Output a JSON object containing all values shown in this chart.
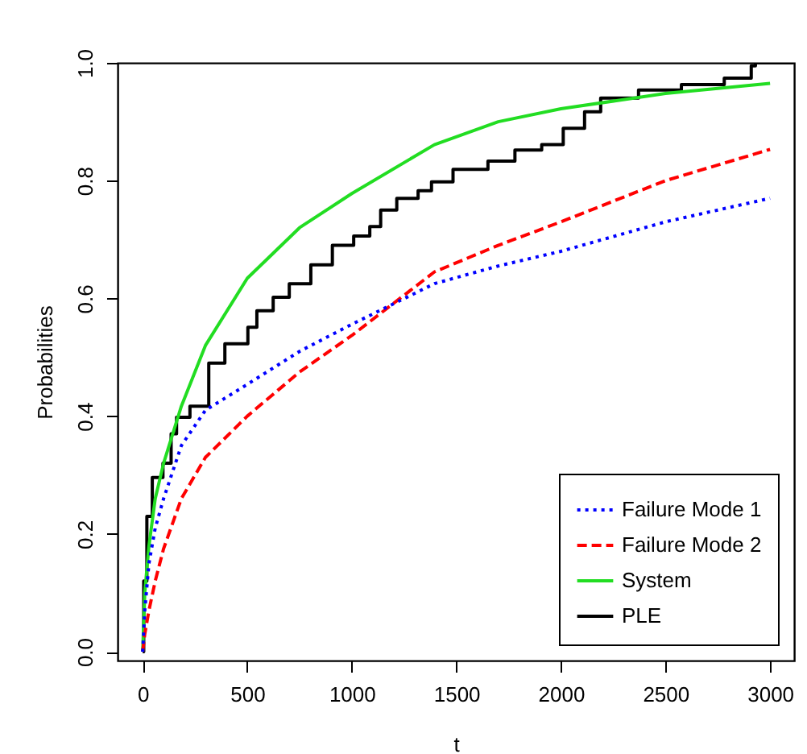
{
  "chart_data": {
    "type": "line",
    "xlabel": "t",
    "ylabel": "Probabilities",
    "xlim": [
      -120,
      3115
    ],
    "ylim": [
      -0.015,
      1.0
    ],
    "xticks": [
      0,
      500,
      1000,
      1500,
      2000,
      2500,
      3000
    ],
    "yticks": [
      {
        "value": 0,
        "label": "0.0"
      },
      {
        "value": 0.2,
        "label": "0.2"
      },
      {
        "value": 0.4,
        "label": "0.4"
      },
      {
        "value": 0.6,
        "label": "0.6"
      },
      {
        "value": 0.8,
        "label": "0.8"
      },
      {
        "value": 1,
        "label": "1.0"
      }
    ],
    "grid": false,
    "legend": "bottom right",
    "series": [
      {
        "name": "Failure Mode 1",
        "color": "#0000ff",
        "line_style": "dotted",
        "x": [
          0,
          10,
          30,
          60,
          100,
          185,
          300,
          500,
          750,
          1000,
          1395,
          1700,
          2000,
          2500,
          3000
        ],
        "values": [
          0,
          0.07,
          0.15,
          0.21,
          0.26,
          0.35,
          0.41,
          0.454,
          0.51,
          0.556,
          0.625,
          0.655,
          0.68,
          0.73,
          0.77
        ]
      },
      {
        "name": "Failure Mode 2",
        "color": "#ff0000",
        "line_style": "dashed",
        "x": [
          0,
          10,
          30,
          60,
          100,
          185,
          300,
          500,
          750,
          1000,
          1395,
          1700,
          2000,
          2500,
          3000
        ],
        "values": [
          0,
          0.03,
          0.07,
          0.12,
          0.175,
          0.26,
          0.33,
          0.4,
          0.475,
          0.537,
          0.645,
          0.69,
          0.73,
          0.8,
          0.853
        ]
      },
      {
        "name": "System",
        "color": "#22dd22",
        "line_style": "solid",
        "x": [
          0,
          10,
          30,
          60,
          100,
          185,
          300,
          500,
          750,
          1000,
          1395,
          1700,
          2000,
          2500,
          3000
        ],
        "values": [
          0,
          0.1,
          0.18,
          0.26,
          0.32,
          0.417,
          0.52,
          0.634,
          0.72,
          0.778,
          0.861,
          0.9,
          0.922,
          0.948,
          0.965
        ]
      },
      {
        "name": "PLE",
        "color": "#000000",
        "line_style": "solid",
        "type": "step",
        "x": [
          0,
          5,
          20,
          46,
          97,
          136,
          162,
          226,
          316,
          393,
          503,
          546,
          624,
          701,
          804,
          907,
          1009,
          1086,
          1138,
          1215,
          1317,
          1381,
          1484,
          1651,
          1780,
          1908,
          2011,
          2113,
          2190,
          2371,
          2576,
          2781,
          2910,
          2930,
          3110
        ],
        "values": [
          0,
          0.12,
          0.23,
          0.296,
          0.32,
          0.37,
          0.398,
          0.417,
          0.49,
          0.523,
          0.551,
          0.579,
          0.602,
          0.625,
          0.657,
          0.69,
          0.706,
          0.722,
          0.75,
          0.77,
          0.783,
          0.798,
          0.819,
          0.833,
          0.852,
          0.861,
          0.889,
          0.917,
          0.94,
          0.954,
          0.963,
          0.974,
          0.995,
          1.0,
          1.0
        ]
      }
    ]
  }
}
